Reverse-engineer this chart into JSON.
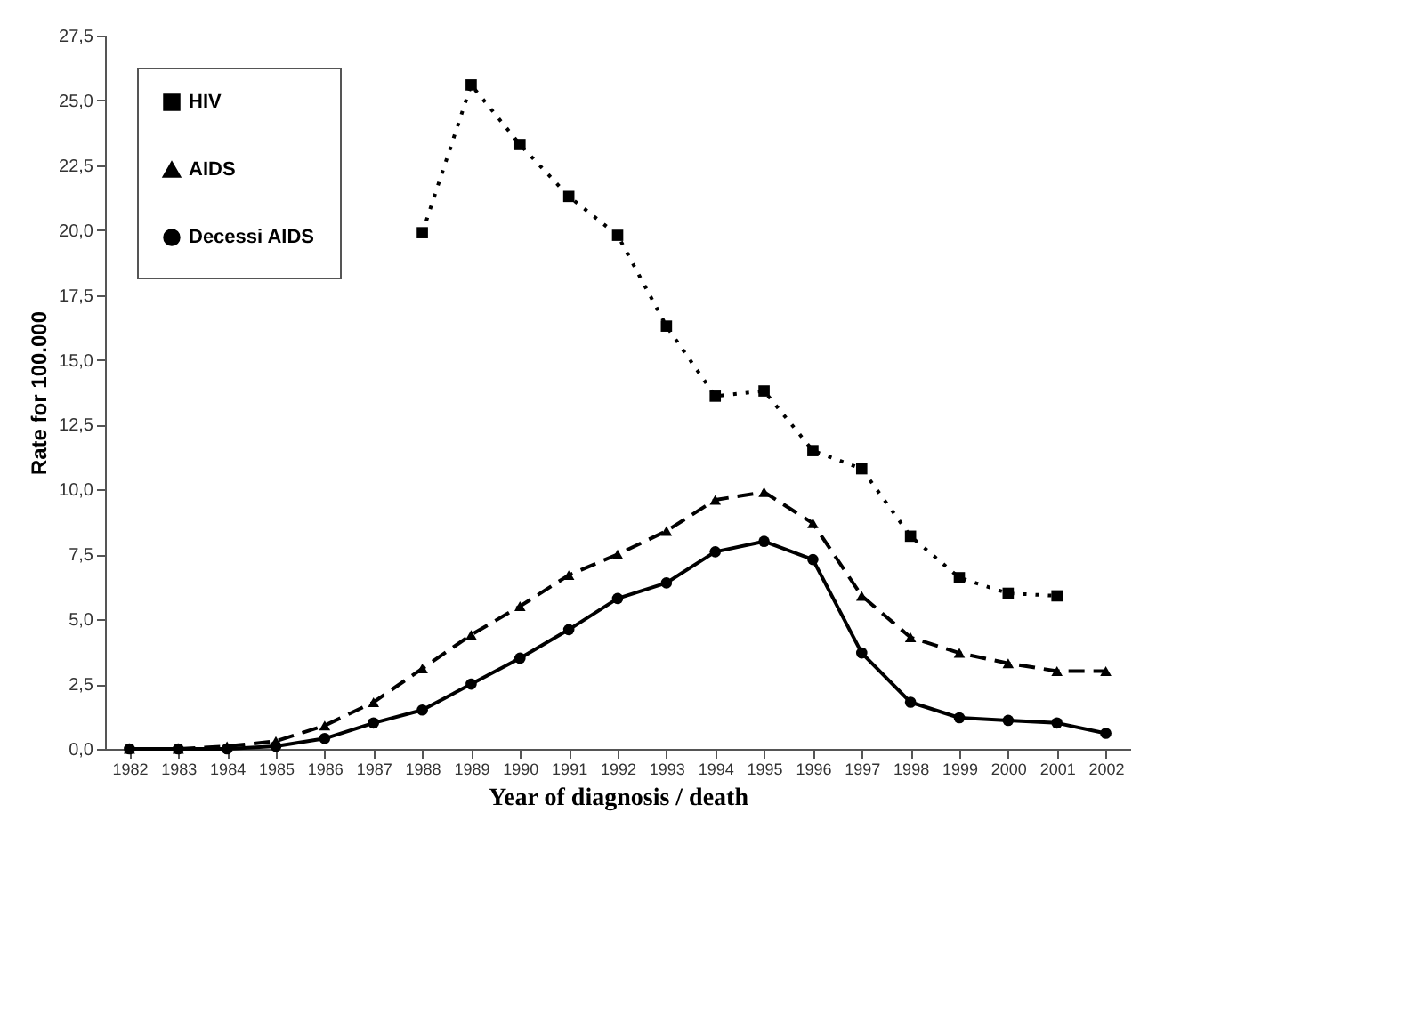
{
  "chart_data": {
    "type": "line",
    "xlabel": "Year of diagnosis / death",
    "ylabel": "Rate for 100.000",
    "categories": [
      "1982",
      "1983",
      "1984",
      "1985",
      "1986",
      "1987",
      "1988",
      "1989",
      "1990",
      "1991",
      "1992",
      "1993",
      "1994",
      "1995",
      "1996",
      "1997",
      "1998",
      "1999",
      "2000",
      "2001",
      "2002"
    ],
    "series": [
      {
        "name": "HIV",
        "color": "#000000",
        "marker": "square",
        "line_style": "dotted",
        "values": [
          null,
          null,
          null,
          null,
          null,
          null,
          19.9,
          25.6,
          23.3,
          21.3,
          19.8,
          16.3,
          13.6,
          13.8,
          11.5,
          10.8,
          8.2,
          6.6,
          6.0,
          5.9,
          null
        ]
      },
      {
        "name": "AIDS",
        "color": "#000000",
        "marker": "triangle",
        "line_style": "dashed",
        "values": [
          0,
          0,
          0.1,
          0.3,
          0.9,
          1.8,
          3.1,
          4.4,
          5.5,
          6.7,
          7.5,
          8.4,
          9.6,
          9.9,
          8.7,
          5.9,
          4.3,
          3.7,
          3.3,
          3.0,
          3.0
        ]
      },
      {
        "name": "Decessi AIDS",
        "color": "#000000",
        "marker": "circle",
        "line_style": "solid",
        "values": [
          0,
          0,
          0,
          0.1,
          0.4,
          1.0,
          1.5,
          2.5,
          3.5,
          4.6,
          5.8,
          6.4,
          7.6,
          8.0,
          7.3,
          3.7,
          1.8,
          1.2,
          1.1,
          1.0,
          0.6
        ]
      }
    ],
    "ylim": [
      0,
      27.5
    ],
    "yticks": [
      {
        "value": 0,
        "label": "0,0"
      },
      {
        "value": 2.5,
        "label": "2,5"
      },
      {
        "value": 5,
        "label": "5,0"
      },
      {
        "value": 7.5,
        "label": "7,5"
      },
      {
        "value": 10,
        "label": "10,0"
      },
      {
        "value": 12.5,
        "label": "12,5"
      },
      {
        "value": 15,
        "label": "15,0"
      },
      {
        "value": 17.5,
        "label": "17,5"
      },
      {
        "value": 20,
        "label": "20,0"
      },
      {
        "value": 22.5,
        "label": "22,5"
      },
      {
        "value": 25,
        "label": "25,0"
      },
      {
        "value": 27.5,
        "label": "27,5"
      }
    ],
    "grid": false,
    "legend": "top left"
  }
}
